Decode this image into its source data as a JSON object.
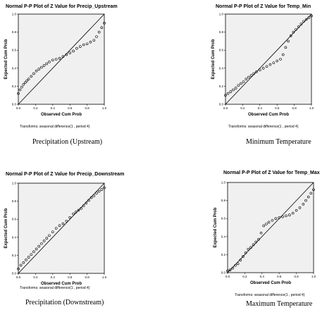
{
  "chart_data": [
    {
      "type": "scatter",
      "title": "Normal P-P Plot of Z Value for Precip_Upstream",
      "xlabel": "Observed Cum Prob",
      "ylabel": "Expected Cum Prob",
      "xlim": [
        0,
        1
      ],
      "ylim": [
        0,
        1
      ],
      "xticks": [
        "0.0",
        "0.2",
        "0.4",
        "0.6",
        "0.8",
        "1.0"
      ],
      "yticks": [
        "0.0",
        "0.2",
        "0.4",
        "0.6",
        "0.8",
        "1.0"
      ],
      "reference_line": [
        [
          0,
          0
        ],
        [
          1,
          1
        ]
      ],
      "grid": false,
      "transforms": "Transforms:  seasonal difference(1 , period 4)",
      "caption": "Precipitation (Upstream)",
      "x": [
        0.0,
        0.02,
        0.04,
        0.06,
        0.08,
        0.1,
        0.12,
        0.15,
        0.18,
        0.21,
        0.24,
        0.27,
        0.3,
        0.33,
        0.36,
        0.4,
        0.44,
        0.48,
        0.52,
        0.56,
        0.6,
        0.64,
        0.68,
        0.72,
        0.76,
        0.8,
        0.84,
        0.88,
        0.91,
        0.94,
        0.97,
        1.0
      ],
      "y": [
        0.12,
        0.16,
        0.19,
        0.22,
        0.24,
        0.26,
        0.28,
        0.31,
        0.34,
        0.37,
        0.39,
        0.41,
        0.43,
        0.45,
        0.47,
        0.49,
        0.5,
        0.51,
        0.53,
        0.55,
        0.57,
        0.59,
        0.62,
        0.64,
        0.66,
        0.67,
        0.69,
        0.71,
        0.75,
        0.8,
        0.85,
        0.9
      ]
    },
    {
      "type": "scatter",
      "title": "Normal P-P Plot of Z Value for Temp_Min",
      "xlabel": "Observed Cum Prob",
      "ylabel": "Expected Cum Prob",
      "xlim": [
        0,
        1
      ],
      "ylim": [
        0,
        1
      ],
      "xticks": [
        "0.0",
        "0.2",
        "0.4",
        "0.6",
        "0.8",
        "1.0"
      ],
      "yticks": [
        "0.0",
        "0.2",
        "0.4",
        "0.6",
        "0.8",
        "1.0"
      ],
      "reference_line": [
        [
          0,
          0
        ],
        [
          1,
          1
        ]
      ],
      "grid": false,
      "transforms": "Transforms:  seasonal difference(1 , period 4)",
      "caption": "Minimum Temperature",
      "x": [
        0.0,
        0.03,
        0.06,
        0.09,
        0.12,
        0.15,
        0.18,
        0.21,
        0.24,
        0.27,
        0.3,
        0.33,
        0.36,
        0.4,
        0.44,
        0.48,
        0.52,
        0.56,
        0.6,
        0.64,
        0.67,
        0.7,
        0.73,
        0.76,
        0.79,
        0.82,
        0.85,
        0.88,
        0.91,
        0.94,
        0.97,
        1.0
      ],
      "y": [
        0.1,
        0.12,
        0.14,
        0.16,
        0.18,
        0.21,
        0.23,
        0.25,
        0.28,
        0.3,
        0.32,
        0.34,
        0.36,
        0.38,
        0.4,
        0.42,
        0.44,
        0.46,
        0.48,
        0.5,
        0.55,
        0.63,
        0.7,
        0.76,
        0.8,
        0.83,
        0.86,
        0.89,
        0.92,
        0.94,
        0.96,
        0.98
      ]
    },
    {
      "type": "scatter",
      "title": "Normal P-P Plot of Z Value for Precip_Downstream",
      "xlabel": "Observed Cum Prob",
      "ylabel": "Expected Cum Prob",
      "xlim": [
        0,
        1
      ],
      "ylim": [
        0,
        1
      ],
      "xticks": [
        "0.0",
        "0.2",
        "0.4",
        "0.6",
        "0.8",
        "1.0"
      ],
      "yticks": [
        "0.0",
        "0.2",
        "0.4",
        "0.6",
        "0.8",
        "1.0"
      ],
      "reference_line": [
        [
          0,
          0
        ],
        [
          1,
          1
        ]
      ],
      "grid": false,
      "transforms": "Transforms:  seasonal difference(1 , period 4)",
      "caption": "Precipitation (Downstream)",
      "x": [
        0.0,
        0.03,
        0.06,
        0.09,
        0.12,
        0.15,
        0.18,
        0.21,
        0.24,
        0.27,
        0.3,
        0.33,
        0.36,
        0.4,
        0.44,
        0.48,
        0.52,
        0.56,
        0.6,
        0.64,
        0.67,
        0.7,
        0.73,
        0.76,
        0.79,
        0.82,
        0.85,
        0.88,
        0.91,
        0.94,
        0.97,
        1.0
      ],
      "y": [
        0.05,
        0.09,
        0.12,
        0.15,
        0.18,
        0.21,
        0.24,
        0.27,
        0.3,
        0.33,
        0.36,
        0.39,
        0.42,
        0.46,
        0.5,
        0.53,
        0.55,
        0.58,
        0.62,
        0.66,
        0.68,
        0.7,
        0.72,
        0.75,
        0.78,
        0.81,
        0.84,
        0.86,
        0.89,
        0.91,
        0.93,
        0.95
      ]
    },
    {
      "type": "scatter",
      "title": "Normal P-P Plot of Z Value for Temp_Max",
      "xlabel": "Observed Cum Prob",
      "ylabel": "Expected Cum Prob",
      "xlim": [
        0,
        1
      ],
      "ylim": [
        0,
        1
      ],
      "xticks": [
        "0.0",
        "0.2",
        "0.4",
        "0.6",
        "0.8",
        "1.0"
      ],
      "yticks": [
        "0.0",
        "0.2",
        "0.4",
        "0.6",
        "0.8",
        "1.0"
      ],
      "reference_line": [
        [
          0,
          0
        ],
        [
          1,
          1
        ]
      ],
      "grid": false,
      "transforms": "Transforms:  seasonal difference(1 , period 4)",
      "caption": "Maximum Temperature",
      "x": [
        0.0,
        0.03,
        0.06,
        0.09,
        0.12,
        0.15,
        0.18,
        0.21,
        0.24,
        0.27,
        0.3,
        0.33,
        0.36,
        0.39,
        0.42,
        0.45,
        0.48,
        0.52,
        0.56,
        0.6,
        0.64,
        0.68,
        0.72,
        0.76,
        0.8,
        0.84,
        0.88,
        0.91,
        0.94,
        0.97,
        1.0
      ],
      "y": [
        0.02,
        0.03,
        0.05,
        0.08,
        0.1,
        0.14,
        0.18,
        0.22,
        0.26,
        0.28,
        0.31,
        0.34,
        0.37,
        0.44,
        0.52,
        0.54,
        0.56,
        0.58,
        0.6,
        0.61,
        0.62,
        0.63,
        0.64,
        0.66,
        0.69,
        0.72,
        0.76,
        0.8,
        0.84,
        0.88,
        0.92
      ]
    }
  ]
}
